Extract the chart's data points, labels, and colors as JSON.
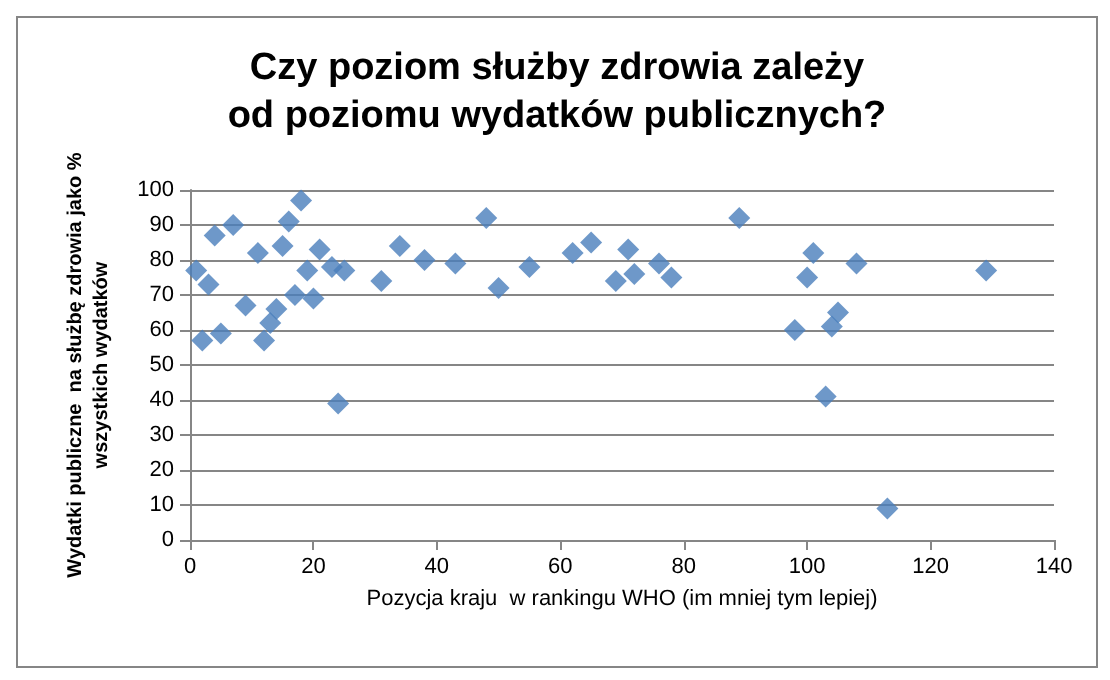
{
  "chart_data": {
    "type": "scatter",
    "title": "Czy poziom służby zdrowia zależy\nod poziomu wydatków publicznych?",
    "xlabel": "Pozycja kraju  w rankingu WHO (im mniej tym lepiej)",
    "ylabel": "Wydatki publiczne  na służbę zdrowia jako %\nwszystkich wydatków",
    "x": [
      1,
      2,
      3,
      4,
      5,
      7,
      9,
      11,
      12,
      13,
      14,
      15,
      16,
      17,
      18,
      19,
      20,
      21,
      23,
      24,
      25,
      31,
      34,
      38,
      43,
      48,
      50,
      55,
      62,
      65,
      69,
      71,
      72,
      76,
      78,
      89,
      98,
      101,
      100,
      108,
      105,
      104,
      103,
      113,
      129
    ],
    "values": [
      77,
      57,
      73,
      87,
      59,
      90,
      67,
      82,
      57,
      62,
      66,
      84,
      91,
      70,
      97,
      77,
      69,
      83,
      78,
      39,
      77,
      74,
      84,
      80,
      79,
      92,
      72,
      78,
      82,
      85,
      74,
      83,
      76,
      79,
      75,
      92,
      60,
      82,
      75,
      79,
      65,
      61,
      41,
      9,
      77
    ],
    "color": "#4a7ebb",
    "marker": "diamond",
    "grid": "y",
    "xlim": [
      0,
      140
    ],
    "xticks": [
      0,
      20,
      40,
      60,
      80,
      100,
      120,
      140
    ],
    "ylim": [
      0,
      100
    ],
    "yticks": [
      0,
      10,
      20,
      30,
      40,
      50,
      60,
      70,
      80,
      90,
      100
    ]
  }
}
